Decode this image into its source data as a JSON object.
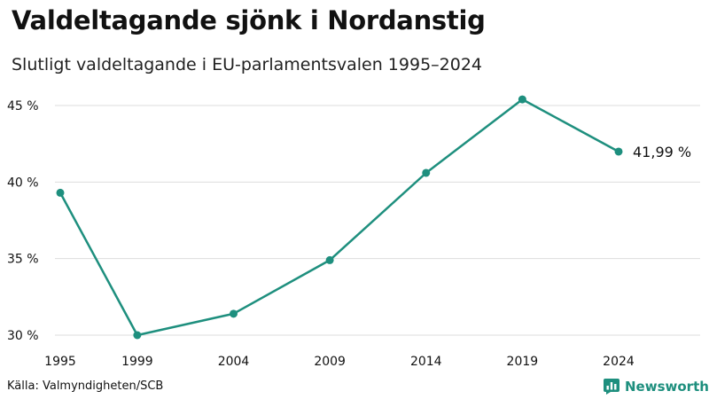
{
  "title": "Valdeltagande sjönk i Nordanstig",
  "subtitle": "Slutligt valdeltagande i EU-parlamentsvalen 1995–2024",
  "source": "Källa: Valmyndigheten/SCB",
  "brand": {
    "name": "Newsworthy",
    "icon": "newsworthy-logo-icon"
  },
  "colors": {
    "line": "#1e8f7e",
    "grid": "#dddddd",
    "text": "#111111"
  },
  "chart_data": {
    "type": "line",
    "title": "Valdeltagande sjönk i Nordanstig",
    "subtitle": "Slutligt valdeltagande i EU-parlamentsvalen 1995–2024",
    "xlabel": "",
    "ylabel": "",
    "x": [
      1995,
      1999,
      2004,
      2009,
      2014,
      2019,
      2024
    ],
    "x_tick_labels": [
      "1995",
      "1999",
      "2004",
      "2009",
      "2014",
      "2019",
      "2024"
    ],
    "series": [
      {
        "name": "Valdeltagande",
        "values": [
          39.3,
          30.0,
          31.4,
          34.9,
          40.6,
          45.4,
          41.99
        ]
      }
    ],
    "ylim": [
      30,
      45
    ],
    "y_ticks": [
      30,
      35,
      40,
      45
    ],
    "y_tick_labels": [
      "30 %",
      "35 %",
      "40 %",
      "45 %"
    ],
    "end_label": "41,99 %",
    "grid": true,
    "legend": "none"
  }
}
